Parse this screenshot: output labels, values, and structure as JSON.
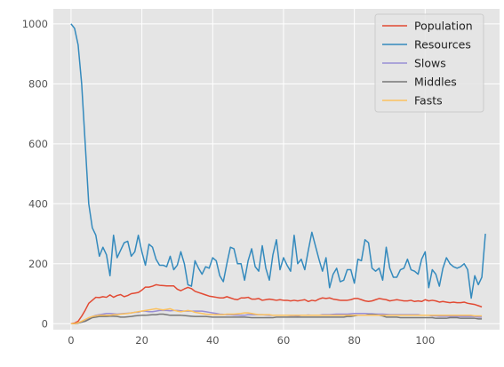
{
  "chart_data": {
    "type": "line",
    "title": "",
    "xlabel": "",
    "ylabel": "",
    "xlim": [
      -5,
      121
    ],
    "ylim": [
      -20,
      1050
    ],
    "xticks": [
      0,
      20,
      40,
      60,
      80,
      100
    ],
    "yticks": [
      0,
      200,
      400,
      600,
      800,
      1000
    ],
    "grid": true,
    "legend_position": "top-right",
    "series": [
      {
        "name": "Population",
        "color": "#E24A33",
        "values": [
          0,
          2,
          8,
          25,
          45,
          68,
          78,
          88,
          87,
          90,
          88,
          96,
          88,
          94,
          97,
          90,
          94,
          100,
          102,
          104,
          112,
          122,
          122,
          125,
          130,
          128,
          127,
          126,
          126,
          126,
          115,
          110,
          116,
          121,
          117,
          108,
          104,
          100,
          96,
          92,
          90,
          88,
          86,
          86,
          90,
          86,
          82,
          80,
          86,
          86,
          88,
          82,
          82,
          84,
          78,
          80,
          82,
          80,
          78,
          80,
          78,
          78,
          76,
          78,
          76,
          78,
          80,
          74,
          78,
          76,
          82,
          86,
          84,
          86,
          82,
          80,
          78,
          78,
          78,
          80,
          84,
          84,
          80,
          76,
          74,
          76,
          80,
          84,
          82,
          80,
          76,
          78,
          80,
          78,
          76,
          76,
          78,
          74,
          76,
          74,
          80,
          76,
          78,
          76,
          72,
          74,
          72,
          70,
          72,
          70,
          70,
          72,
          68,
          66,
          64,
          60,
          56
        ]
      },
      {
        "name": "Resources",
        "color": "#348ABD",
        "values": [
          1000,
          985,
          930,
          800,
          600,
          400,
          320,
          295,
          225,
          255,
          230,
          160,
          295,
          220,
          245,
          270,
          275,
          225,
          240,
          295,
          240,
          195,
          265,
          255,
          215,
          195,
          195,
          190,
          225,
          180,
          195,
          240,
          200,
          130,
          125,
          210,
          185,
          165,
          190,
          185,
          220,
          210,
          160,
          140,
          200,
          255,
          250,
          200,
          200,
          145,
          210,
          250,
          190,
          175,
          260,
          185,
          145,
          230,
          280,
          180,
          220,
          195,
          175,
          295,
          200,
          215,
          180,
          245,
          305,
          260,
          215,
          175,
          220,
          120,
          165,
          185,
          140,
          145,
          180,
          180,
          135,
          215,
          210,
          280,
          270,
          185,
          175,
          185,
          145,
          255,
          185,
          155,
          155,
          180,
          185,
          215,
          180,
          175,
          165,
          215,
          240,
          120,
          180,
          165,
          125,
          185,
          220,
          200,
          190,
          185,
          190,
          200,
          180,
          85,
          160,
          130,
          155,
          300
        ]
      },
      {
        "name": "Slows",
        "color": "#988ED5",
        "values": [
          0,
          0,
          2,
          5,
          10,
          18,
          24,
          28,
          30,
          32,
          34,
          34,
          33,
          32,
          33,
          34,
          35,
          36,
          38,
          38,
          42,
          42,
          40,
          40,
          42,
          44,
          44,
          44,
          43,
          44,
          44,
          43,
          42,
          42,
          42,
          42,
          42,
          42,
          40,
          38,
          36,
          34,
          32,
          31,
          30,
          30,
          29,
          29,
          28,
          28,
          30,
          30,
          30,
          30,
          30,
          29,
          28,
          28,
          28,
          28,
          28,
          28,
          27,
          27,
          26,
          28,
          28,
          29,
          28,
          28,
          28,
          30,
          30,
          30,
          31,
          32,
          32,
          32,
          32,
          33,
          34,
          34,
          34,
          34,
          33,
          33,
          32,
          32,
          32,
          31,
          30,
          30,
          30,
          30,
          30,
          30,
          30,
          30,
          30,
          28,
          28,
          28,
          26,
          26,
          25,
          25,
          25,
          24,
          24,
          24,
          24,
          24,
          24,
          24,
          24,
          22,
          22
        ]
      },
      {
        "name": "Middles",
        "color": "#777777",
        "values": [
          0,
          0,
          2,
          5,
          8,
          14,
          20,
          22,
          24,
          24,
          24,
          25,
          25,
          24,
          22,
          22,
          23,
          24,
          26,
          27,
          28,
          28,
          29,
          30,
          30,
          32,
          32,
          30,
          28,
          28,
          28,
          28,
          27,
          26,
          25,
          24,
          24,
          24,
          24,
          23,
          22,
          22,
          22,
          22,
          22,
          22,
          22,
          22,
          22,
          22,
          21,
          20,
          20,
          20,
          20,
          20,
          20,
          20,
          22,
          22,
          22,
          22,
          22,
          22,
          22,
          22,
          22,
          22,
          22,
          22,
          22,
          22,
          22,
          22,
          22,
          22,
          22,
          22,
          24,
          24,
          26,
          28,
          28,
          28,
          30,
          30,
          30,
          28,
          26,
          22,
          22,
          22,
          22,
          20,
          20,
          20,
          20,
          20,
          20,
          20,
          20,
          20,
          20,
          18,
          18,
          18,
          18,
          20,
          20,
          20,
          18,
          18,
          18,
          18,
          18,
          16,
          16
        ]
      },
      {
        "name": "Fasts",
        "color": "#FBC15E",
        "values": [
          0,
          0,
          3,
          8,
          14,
          20,
          24,
          26,
          28,
          28,
          28,
          28,
          30,
          30,
          32,
          33,
          34,
          36,
          38,
          40,
          42,
          44,
          46,
          48,
          50,
          48,
          46,
          48,
          50,
          45,
          42,
          40,
          42,
          44,
          42,
          38,
          36,
          34,
          32,
          31,
          30,
          30,
          30,
          30,
          32,
          32,
          32,
          33,
          34,
          36,
          36,
          34,
          32,
          30,
          30,
          30,
          30,
          28,
          28,
          28,
          28,
          28,
          28,
          28,
          28,
          28,
          28,
          28,
          28,
          28,
          28,
          28,
          28,
          28,
          28,
          28,
          28,
          28,
          28,
          28,
          28,
          28,
          28,
          28,
          28,
          28,
          28,
          28,
          28,
          28,
          28,
          28,
          28,
          28,
          28,
          28,
          28,
          28,
          28,
          28,
          28,
          28,
          28,
          28,
          28,
          28,
          28,
          28,
          28,
          28,
          28,
          28,
          28,
          28,
          26,
          26,
          26
        ]
      }
    ]
  }
}
